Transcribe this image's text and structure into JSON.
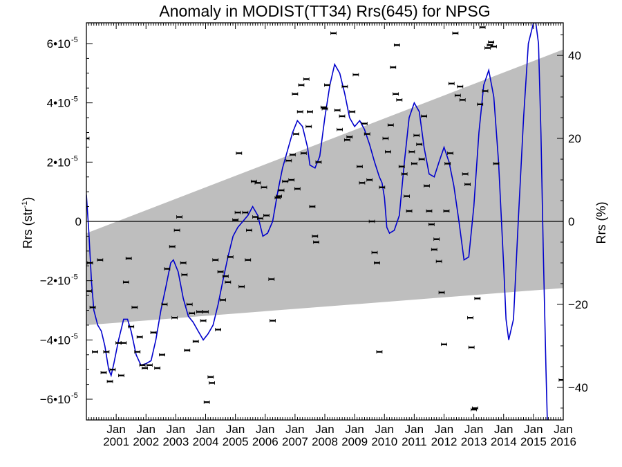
{
  "chart_data": {
    "type": "scatter",
    "title": "Anomaly in MODIST(TT34) Rrs(645) for NPSG",
    "ylabel_left": {
      "base": "Rrs (str",
      "sup": "-1",
      "close": ")"
    },
    "ylabel_right": "Rrs (%)",
    "x_ticks": [
      {
        "month": "Jan",
        "year": "2001",
        "t": 2001.0
      },
      {
        "month": "Jan",
        "year": "2002",
        "t": 2002.0
      },
      {
        "month": "Jan",
        "year": "2003",
        "t": 2003.0
      },
      {
        "month": "Jan",
        "year": "2004",
        "t": 2004.0
      },
      {
        "month": "Jan",
        "year": "2005",
        "t": 2005.0
      },
      {
        "month": "Jan",
        "year": "2006",
        "t": 2006.0
      },
      {
        "month": "Jan",
        "year": "2007",
        "t": 2007.0
      },
      {
        "month": "Jan",
        "year": "2008",
        "t": 2008.0
      },
      {
        "month": "Jan",
        "year": "2009",
        "t": 2009.0
      },
      {
        "month": "Jan",
        "year": "2010",
        "t": 2010.0
      },
      {
        "month": "Jan",
        "year": "2011",
        "t": 2011.0
      },
      {
        "month": "Jan",
        "year": "2012",
        "t": 2012.0
      },
      {
        "month": "Jan",
        "year": "2013",
        "t": 2013.0
      },
      {
        "month": "Jan",
        "year": "2014",
        "t": 2014.0
      },
      {
        "month": "Jan",
        "year": "2015",
        "t": 2015.0
      },
      {
        "month": "Jan",
        "year": "2016",
        "t": 2016.0
      }
    ],
    "xlim": [
      2000.0,
      2016.0
    ],
    "ylim": [
      -6.7e-05,
      6.7e-05
    ],
    "y_ticks_left": [
      {
        "label": "6•10",
        "sup": "-5",
        "v": 6e-05
      },
      {
        "label": "4•10",
        "sup": "-5",
        "v": 4e-05
      },
      {
        "label": "2•10",
        "sup": "-5",
        "v": 2e-05
      },
      {
        "label": "0",
        "sup": "",
        "v": 0
      },
      {
        "label": "−2•10",
        "sup": "-5",
        "v": -2e-05
      },
      {
        "label": "−4•10",
        "sup": "-5",
        "v": -4e-05
      },
      {
        "label": "−6•10",
        "sup": "-5",
        "v": -6e-05
      }
    ],
    "y_ticks_right": [
      {
        "label": "40",
        "v": 40
      },
      {
        "label": "20",
        "v": 20
      },
      {
        "label": "0",
        "v": 0
      },
      {
        "label": "−20",
        "v": -20
      },
      {
        "label": "−40",
        "v": -40
      }
    ],
    "right_axis_scale": "1% = 1.4e-6 str^-1",
    "zero_line": 0,
    "confidence_band": {
      "color": "#bebebe",
      "start": {
        "t": 2000.0,
        "lower": -3.5e-05,
        "upper": -4e-06
      },
      "end": {
        "t": 2016.0,
        "lower": -2.25e-05,
        "upper": 5.8e-05
      }
    },
    "smooth_series": {
      "color": "#0000cc",
      "points": [
        [
          2000.0,
          9e-06
        ],
        [
          2000.08,
          -3e-06
        ],
        [
          2000.17,
          -2e-05
        ],
        [
          2000.25,
          -3e-05
        ],
        [
          2000.38,
          -3.5e-05
        ],
        [
          2000.5,
          -3.7e-05
        ],
        [
          2000.62,
          -4.2e-05
        ],
        [
          2000.75,
          -5e-05
        ],
        [
          2000.83,
          -5.2e-05
        ],
        [
          2000.92,
          -4.8e-05
        ],
        [
          2001.08,
          -4e-05
        ],
        [
          2001.25,
          -3.3e-05
        ],
        [
          2001.38,
          -3.3e-05
        ],
        [
          2001.5,
          -3.7e-05
        ],
        [
          2001.67,
          -4.5e-05
        ],
        [
          2001.83,
          -4.85e-05
        ],
        [
          2002.0,
          -4.8e-05
        ],
        [
          2002.17,
          -4.7e-05
        ],
        [
          2002.33,
          -4e-05
        ],
        [
          2002.5,
          -3e-05
        ],
        [
          2002.67,
          -2.2e-05
        ],
        [
          2002.83,
          -1.4e-05
        ],
        [
          2002.92,
          -1.3e-05
        ],
        [
          2003.08,
          -1.7e-05
        ],
        [
          2003.25,
          -2.6e-05
        ],
        [
          2003.42,
          -3.2e-05
        ],
        [
          2003.58,
          -3.4e-05
        ],
        [
          2003.75,
          -3.7e-05
        ],
        [
          2003.92,
          -4e-05
        ],
        [
          2004.08,
          -3.8e-05
        ],
        [
          2004.25,
          -3.5e-05
        ],
        [
          2004.42,
          -2.8e-05
        ],
        [
          2004.58,
          -2e-05
        ],
        [
          2004.75,
          -1.2e-05
        ],
        [
          2004.92,
          -5e-06
        ],
        [
          2005.08,
          -2e-06
        ],
        [
          2005.25,
          0.0
        ],
        [
          2005.42,
          2e-06
        ],
        [
          2005.58,
          5e-06
        ],
        [
          2005.75,
          2e-06
        ],
        [
          2005.92,
          -5e-06
        ],
        [
          2006.08,
          -4e-06
        ],
        [
          2006.25,
          0.0
        ],
        [
          2006.42,
          1e-05
        ],
        [
          2006.58,
          1.8e-05
        ],
        [
          2006.75,
          2.4e-05
        ],
        [
          2006.92,
          3e-05
        ],
        [
          2007.08,
          3.4e-05
        ],
        [
          2007.25,
          3.2e-05
        ],
        [
          2007.42,
          2.5e-05
        ],
        [
          2007.5,
          1.9e-05
        ],
        [
          2007.67,
          1.8e-05
        ],
        [
          2007.83,
          2.2e-05
        ],
        [
          2008.0,
          3.5e-05
        ],
        [
          2008.17,
          4.6e-05
        ],
        [
          2008.33,
          5.3e-05
        ],
        [
          2008.5,
          5e-05
        ],
        [
          2008.67,
          4.3e-05
        ],
        [
          2008.83,
          3.5e-05
        ],
        [
          2009.0,
          3.2e-05
        ],
        [
          2009.17,
          3.4e-05
        ],
        [
          2009.33,
          3.1e-05
        ],
        [
          2009.5,
          2.6e-05
        ],
        [
          2009.67,
          2e-05
        ],
        [
          2009.83,
          1.5e-05
        ],
        [
          2009.92,
          1.3e-05
        ],
        [
          2010.0,
          8e-06
        ],
        [
          2010.08,
          -2e-06
        ],
        [
          2010.17,
          -4e-06
        ],
        [
          2010.33,
          -3e-06
        ],
        [
          2010.5,
          2e-06
        ],
        [
          2010.67,
          2e-05
        ],
        [
          2010.83,
          3.5e-05
        ],
        [
          2011.0,
          4e-05
        ],
        [
          2011.17,
          3.7e-05
        ],
        [
          2011.33,
          2.5e-05
        ],
        [
          2011.5,
          1.6e-05
        ],
        [
          2011.67,
          1.5e-05
        ],
        [
          2011.83,
          2e-05
        ],
        [
          2012.0,
          2.5e-05
        ],
        [
          2012.17,
          2e-05
        ],
        [
          2012.33,
          1.2e-05
        ],
        [
          2012.5,
          0.0
        ],
        [
          2012.67,
          -1.3e-05
        ],
        [
          2012.83,
          -1.2e-05
        ],
        [
          2013.0,
          5e-06
        ],
        [
          2013.17,
          3e-05
        ],
        [
          2013.33,
          4.6e-05
        ],
        [
          2013.5,
          5.1e-05
        ],
        [
          2013.67,
          4.2e-05
        ],
        [
          2013.83,
          2e-05
        ],
        [
          2014.0,
          -1.5e-05
        ],
        [
          2014.08,
          -3.3e-05
        ],
        [
          2014.17,
          -4e-05
        ],
        [
          2014.33,
          -3.3e-05
        ],
        [
          2014.5,
          2e-06
        ],
        [
          2014.67,
          3.5e-05
        ],
        [
          2014.83,
          6e-05
        ],
        [
          2015.0,
          6.7e-05
        ],
        [
          2015.08,
          6.7e-05
        ],
        [
          2015.17,
          6e-05
        ],
        [
          2015.25,
          3e-05
        ],
        [
          2015.33,
          -1e-05
        ],
        [
          2015.42,
          -5e-05
        ],
        [
          2015.5,
          -8e-05
        ]
      ]
    },
    "points": [
      [
        2000.0,
        2.8e-05
      ],
      [
        2000.08,
        -2.35e-05
      ],
      [
        2000.12,
        -1.4e-05
      ],
      [
        2000.21,
        -2.9e-05
      ],
      [
        2000.29,
        -4.4e-05
      ],
      [
        2000.46,
        -1.3e-05
      ],
      [
        2000.58,
        -5.1e-05
      ],
      [
        2000.67,
        -4.4e-05
      ],
      [
        2000.79,
        -5.4e-05
      ],
      [
        2000.88,
        -5e-05
      ],
      [
        2001.08,
        -4.1e-05
      ],
      [
        2001.17,
        -5.2e-05
      ],
      [
        2001.25,
        -4.1e-05
      ],
      [
        2001.33,
        -2.05e-05
      ],
      [
        2001.42,
        -1.25e-05
      ],
      [
        2001.5,
        -3.55e-05
      ],
      [
        2001.62,
        -2.9e-05
      ],
      [
        2001.71,
        -4.4e-05
      ],
      [
        2001.79,
        -3.9e-05
      ],
      [
        2001.88,
        -4.85e-05
      ],
      [
        2001.96,
        -4.95e-05
      ],
      [
        2002.12,
        -4.85e-05
      ],
      [
        2002.25,
        -3.75e-05
      ],
      [
        2002.38,
        -4.95e-05
      ],
      [
        2002.54,
        -4.5e-05
      ],
      [
        2002.62,
        -2.8e-05
      ],
      [
        2002.71,
        -1.6e-05
      ],
      [
        2002.88,
        -8.5e-06
      ],
      [
        2002.96,
        -3.25e-05
      ],
      [
        2003.04,
        -3e-06
      ],
      [
        2003.12,
        1.5e-06
      ],
      [
        2003.25,
        -1.4e-05
      ],
      [
        2003.29,
        -1.8e-05
      ],
      [
        2003.38,
        -4.35e-05
      ],
      [
        2003.46,
        -2.8e-05
      ],
      [
        2003.54,
        -3.1e-05
      ],
      [
        2003.67,
        -4.05e-05
      ],
      [
        2003.79,
        -3.05e-05
      ],
      [
        2003.92,
        -3.35e-05
      ],
      [
        2004.0,
        -3.05e-05
      ],
      [
        2004.04,
        -6.1e-05
      ],
      [
        2004.17,
        -5.25e-05
      ],
      [
        2004.21,
        -5.45e-05
      ],
      [
        2004.33,
        -1.3e-05
      ],
      [
        2004.42,
        -3.65e-05
      ],
      [
        2004.5,
        -1.7e-05
      ],
      [
        2004.58,
        -2.65e-05
      ],
      [
        2004.67,
        -1.85e-05
      ],
      [
        2004.75,
        -2.05e-05
      ],
      [
        2004.83,
        -1.2e-05
      ],
      [
        2005.0,
        5e-07
      ],
      [
        2005.08,
        3e-06
      ],
      [
        2005.12,
        2.3e-05
      ],
      [
        2005.21,
        -2.2e-05
      ],
      [
        2005.33,
        3e-06
      ],
      [
        2005.42,
        -1.3e-05
      ],
      [
        2005.46,
        -3e-06
      ],
      [
        2005.62,
        1.35e-05
      ],
      [
        2005.67,
        1.5e-06
      ],
      [
        2005.75,
        1.3e-05
      ],
      [
        2005.83,
        1e-06
      ],
      [
        2005.96,
        1.15e-05
      ],
      [
        2006.04,
        2e-06
      ],
      [
        2006.21,
        -1.95e-05
      ],
      [
        2006.25,
        -3.35e-05
      ],
      [
        2006.42,
        8e-06
      ],
      [
        2006.46,
        8.5e-06
      ],
      [
        2006.54,
        1.05e-05
      ],
      [
        2006.67,
        1.35e-05
      ],
      [
        2006.79,
        2.05e-05
      ],
      [
        2006.88,
        1.4e-05
      ],
      [
        2006.92,
        2.25e-05
      ],
      [
        2007.0,
        4.3e-05
      ],
      [
        2007.04,
        2.95e-05
      ],
      [
        2007.08,
        1.1e-05
      ],
      [
        2007.17,
        3.7e-05
      ],
      [
        2007.21,
        4.6e-05
      ],
      [
        2007.29,
        2.3e-05
      ],
      [
        2007.38,
        4.8e-05
      ],
      [
        2007.46,
        3.2e-05
      ],
      [
        2007.5,
        3.7e-05
      ],
      [
        2007.58,
        5e-06
      ],
      [
        2007.67,
        -5e-06
      ],
      [
        2007.71,
        -7e-06
      ],
      [
        2007.79,
        2e-05
      ],
      [
        2007.96,
        3.85e-05
      ],
      [
        2008.0,
        3.8e-05
      ],
      [
        2008.08,
        4.6e-05
      ],
      [
        2008.29,
        6.35e-05
      ],
      [
        2008.42,
        3.75e-05
      ],
      [
        2008.5,
        3.1e-05
      ],
      [
        2008.58,
        3.55e-05
      ],
      [
        2008.67,
        4.55e-05
      ],
      [
        2008.75,
        2.75e-05
      ],
      [
        2008.83,
        2.85e-05
      ],
      [
        2008.92,
        3.7e-05
      ],
      [
        2009.04,
        4.95e-05
      ],
      [
        2009.17,
        1.85e-05
      ],
      [
        2009.25,
        1.3e-05
      ],
      [
        2009.33,
        3.3e-05
      ],
      [
        2009.42,
        2.95e-05
      ],
      [
        2009.5,
        1.4e-05
      ],
      [
        2009.58,
        0.0
      ],
      [
        2009.67,
        -1.05e-05
      ],
      [
        2009.75,
        -1.4e-05
      ],
      [
        2009.83,
        -4.4e-05
      ],
      [
        2009.92,
        1.15e-05
      ],
      [
        2010.04,
        2.8e-05
      ],
      [
        2010.12,
        2.35e-05
      ],
      [
        2010.21,
        3.25e-05
      ],
      [
        2010.29,
        5.2e-05
      ],
      [
        2010.38,
        4.3e-05
      ],
      [
        2010.42,
        5.95e-05
      ],
      [
        2010.5,
        4.1e-05
      ],
      [
        2010.58,
        1.85e-05
      ],
      [
        2010.67,
        1.6e-05
      ],
      [
        2010.75,
        8.5e-06
      ],
      [
        2010.83,
        3.5e-06
      ],
      [
        2010.92,
        2.35e-05
      ],
      [
        2011.0,
        1.95e-05
      ],
      [
        2011.08,
        2.9e-05
      ],
      [
        2011.17,
        2.6e-05
      ],
      [
        2011.25,
        2.1e-05
      ],
      [
        2011.33,
        3.55e-05
      ],
      [
        2011.42,
        1.2e-05
      ],
      [
        2011.5,
        3.5e-06
      ],
      [
        2011.58,
        -1e-06
      ],
      [
        2011.67,
        -9.5e-06
      ],
      [
        2011.75,
        -6e-06
      ],
      [
        2011.83,
        -1.35e-05
      ],
      [
        2011.92,
        -2.4e-05
      ],
      [
        2012.0,
        -4.15e-05
      ],
      [
        2012.08,
        3.5e-06
      ],
      [
        2012.12,
        1.95e-05
      ],
      [
        2012.21,
        2.3e-05
      ],
      [
        2012.25,
        4.65e-05
      ],
      [
        2012.38,
        6.35e-05
      ],
      [
        2012.46,
        4.25e-05
      ],
      [
        2012.54,
        4.55e-05
      ],
      [
        2012.62,
        4.1e-05
      ],
      [
        2012.71,
        1.6e-05
      ],
      [
        2012.79,
        1.25e-05
      ],
      [
        2012.88,
        -3.25e-05
      ],
      [
        2012.92,
        -4.25e-05
      ],
      [
        2013.0,
        -6.35e-05
      ],
      [
        2013.04,
        -6.3e-05
      ],
      [
        2013.12,
        -2.6e-05
      ],
      [
        2013.21,
        3.95e-05
      ],
      [
        2013.29,
        6.55e-05
      ],
      [
        2013.38,
        4.4e-05
      ],
      [
        2013.46,
        5.85e-05
      ],
      [
        2013.54,
        5.95e-05
      ],
      [
        2013.58,
        6.05e-05
      ],
      [
        2013.67,
        5.9e-05
      ],
      [
        2013.75,
        1.95e-05
      ],
      [
        2015.95,
        -5.35e-05
      ]
    ]
  }
}
